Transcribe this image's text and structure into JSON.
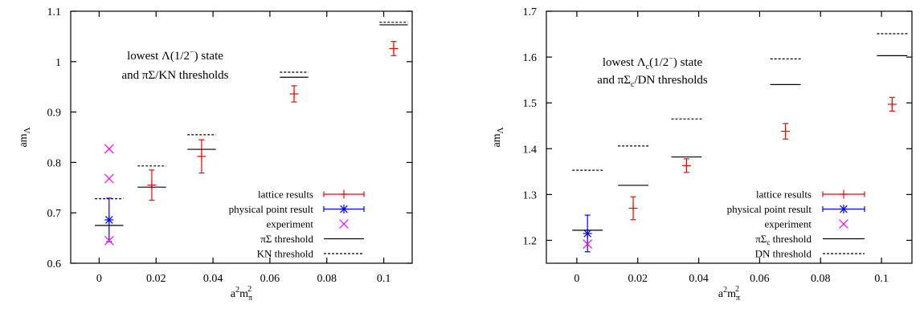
{
  "chart_data": [
    {
      "type": "scatter",
      "xlabel": "a2mπ2",
      "ylabel": "amΛ",
      "xlim": [
        -0.01,
        0.11
      ],
      "ylim": [
        0.6,
        1.1
      ],
      "xticks": [
        0,
        0.02,
        0.04,
        0.06,
        0.08,
        0.1
      ],
      "xtick_labels": [
        "0",
        "0.02",
        "0.04",
        "0.06",
        "0.08",
        "0.1"
      ],
      "yticks": [
        0.6,
        0.7,
        0.8,
        0.9,
        1.0,
        1.1
      ],
      "ytick_labels": [
        "0.6",
        "0.7",
        "0.8",
        "0.9",
        "1",
        "1.1"
      ],
      "annotation": {
        "line1": {
          "pre": "lowest Λ(1/2",
          "sup": "−",
          "post": ") state"
        },
        "line2": "and πΣ/KN thresholds"
      },
      "legend_placement": "bottom-right",
      "legend": [
        {
          "key": "lattice",
          "label": "lattice results"
        },
        {
          "key": "physical",
          "label": "physical point result"
        },
        {
          "key": "experiment",
          "label": "experiment"
        },
        {
          "key": "threshold1",
          "label": "πΣ threshold"
        },
        {
          "key": "threshold2",
          "label": "KN threshold"
        }
      ],
      "colors": {
        "lattice": "#ff0000",
        "physical": "#0000ff",
        "experiment": "#ff00ff",
        "threshold": "#000000"
      },
      "series": [
        {
          "name": "lattice results",
          "key": "lattice",
          "marker": "plus",
          "error_bars": true,
          "points": [
            {
              "x": 0.0185,
              "y": 0.755,
              "err": 0.03
            },
            {
              "x": 0.036,
              "y": 0.812,
              "err": 0.033
            },
            {
              "x": 0.0685,
              "y": 0.936,
              "err": 0.016
            },
            {
              "x": 0.1035,
              "y": 1.026,
              "err": 0.014
            }
          ]
        },
        {
          "name": "physical point result",
          "key": "physical",
          "marker": "star",
          "error_bars": true,
          "points": [
            {
              "x": 0.0035,
              "y": 0.686,
              "err": 0.043
            }
          ]
        },
        {
          "name": "experiment",
          "key": "experiment",
          "marker": "cross",
          "error_bars": false,
          "points": [
            {
              "x": 0.0035,
              "y": 0.827
            },
            {
              "x": 0.0035,
              "y": 0.768
            },
            {
              "x": 0.0035,
              "y": 0.645
            }
          ]
        },
        {
          "name": "πΣ threshold",
          "key": "threshold1",
          "style": "solid",
          "segments": [
            {
              "x1": -0.0015,
              "x2": 0.0085,
              "y": 0.675
            },
            {
              "x1": 0.0135,
              "x2": 0.0235,
              "y": 0.751
            },
            {
              "x1": 0.031,
              "x2": 0.041,
              "y": 0.826
            },
            {
              "x1": 0.0635,
              "x2": 0.0735,
              "y": 0.969
            },
            {
              "x1": 0.0985,
              "x2": 0.1085,
              "y": 1.073
            }
          ]
        },
        {
          "name": "KN threshold",
          "key": "threshold2",
          "style": "dashed",
          "segments": [
            {
              "x1": -0.0015,
              "x2": 0.0085,
              "y": 0.728
            },
            {
              "x1": 0.0135,
              "x2": 0.0235,
              "y": 0.793
            },
            {
              "x1": 0.031,
              "x2": 0.041,
              "y": 0.855
            },
            {
              "x1": 0.0635,
              "x2": 0.0735,
              "y": 0.979
            },
            {
              "x1": 0.0985,
              "x2": 0.1085,
              "y": 1.078
            }
          ]
        }
      ]
    },
    {
      "type": "scatter",
      "xlabel": "a2mπ2",
      "ylabel": "amΛ",
      "xlim": [
        -0.01,
        0.11
      ],
      "ylim": [
        1.15,
        1.7
      ],
      "xticks": [
        0,
        0.02,
        0.04,
        0.06,
        0.08,
        0.1
      ],
      "xtick_labels": [
        "0",
        "0.02",
        "0.04",
        "0.06",
        "0.08",
        "0.1"
      ],
      "yticks": [
        1.2,
        1.3,
        1.4,
        1.5,
        1.6,
        1.7
      ],
      "ytick_labels": [
        "1.2",
        "1.3",
        "1.4",
        "1.5",
        "1.6",
        "1.7"
      ],
      "annotation": {
        "line1": {
          "pre": "lowest Λ",
          "sub": "c",
          "mid": "(1/2",
          "sup": "−",
          "post": ") state"
        },
        "line2": {
          "pre": "and πΣ",
          "sub": "c",
          "post": "/DN thresholds"
        }
      },
      "legend_placement": "bottom-right",
      "legend": [
        {
          "key": "lattice",
          "label": "lattice results"
        },
        {
          "key": "physical",
          "label": "physical point result"
        },
        {
          "key": "experiment",
          "label": "experiment"
        },
        {
          "key": "threshold1",
          "label": "πΣc threshold"
        },
        {
          "key": "threshold2",
          "label": "DN threshold"
        }
      ],
      "colors": {
        "lattice": "#ff0000",
        "physical": "#0000ff",
        "experiment": "#ff00ff",
        "threshold": "#000000"
      },
      "series": [
        {
          "name": "lattice results",
          "key": "lattice",
          "marker": "plus",
          "error_bars": true,
          "points": [
            {
              "x": 0.0185,
              "y": 1.27,
              "err": 0.025
            },
            {
              "x": 0.036,
              "y": 1.363,
              "err": 0.015
            },
            {
              "x": 0.0685,
              "y": 1.438,
              "err": 0.017
            },
            {
              "x": 0.1035,
              "y": 1.497,
              "err": 0.015
            }
          ]
        },
        {
          "name": "physical point result",
          "key": "physical",
          "marker": "star",
          "error_bars": true,
          "points": [
            {
              "x": 0.0035,
              "y": 1.215,
              "err": 0.04
            }
          ]
        },
        {
          "name": "experiment",
          "key": "experiment",
          "marker": "cross",
          "error_bars": false,
          "points": [
            {
              "x": 0.0035,
              "y": 1.192
            }
          ]
        },
        {
          "name": "πΣc threshold",
          "key": "threshold1",
          "style": "solid",
          "segments": [
            {
              "x1": -0.0015,
              "x2": 0.0085,
              "y": 1.222
            },
            {
              "x1": 0.0135,
              "x2": 0.0235,
              "y": 1.32
            },
            {
              "x1": 0.031,
              "x2": 0.041,
              "y": 1.382
            },
            {
              "x1": 0.0635,
              "x2": 0.0735,
              "y": 1.54
            },
            {
              "x1": 0.0985,
              "x2": 0.1085,
              "y": 1.603
            }
          ]
        },
        {
          "name": "DN threshold",
          "key": "threshold2",
          "style": "dashed",
          "segments": [
            {
              "x1": -0.0015,
              "x2": 0.0085,
              "y": 1.353
            },
            {
              "x1": 0.0135,
              "x2": 0.0235,
              "y": 1.406
            },
            {
              "x1": 0.031,
              "x2": 0.041,
              "y": 1.465
            },
            {
              "x1": 0.0635,
              "x2": 0.0735,
              "y": 1.596
            },
            {
              "x1": 0.0985,
              "x2": 0.1085,
              "y": 1.651
            }
          ]
        }
      ]
    }
  ]
}
